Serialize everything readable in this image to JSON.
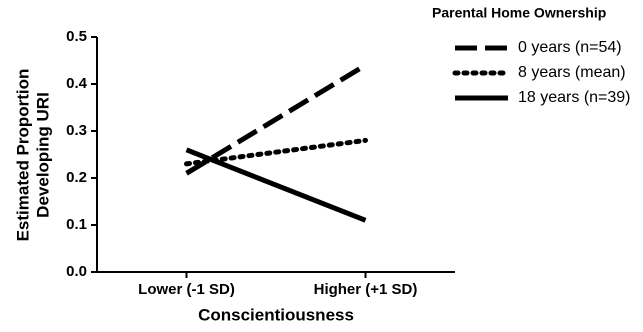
{
  "chart_data": {
    "type": "line",
    "y_label": [
      "Estimated Proportion",
      "Developing URI"
    ],
    "x_label": "Conscientiousness",
    "legend_title": "Parental Home Ownership",
    "legend": "right",
    "categories": [
      "Lower (-1 SD)",
      "Higher (+1 SD)"
    ],
    "series": [
      {
        "name": "0 years (n=54)",
        "color": "#000000",
        "line_style": "dashed",
        "values": [
          0.21,
          0.44
        ]
      },
      {
        "name": "8 years (mean)",
        "color": "#000000",
        "line_style": "dotted",
        "values": [
          0.23,
          0.28
        ]
      },
      {
        "name": "18 years (n=39)",
        "color": "#000000",
        "line_style": "solid",
        "values": [
          0.26,
          0.11
        ]
      }
    ],
    "ylim": [
      0,
      0.5
    ],
    "yticks": [
      {
        "value": 0,
        "label": "0.0"
      },
      0.1,
      0.2,
      0.3,
      0.4,
      0.5
    ]
  }
}
